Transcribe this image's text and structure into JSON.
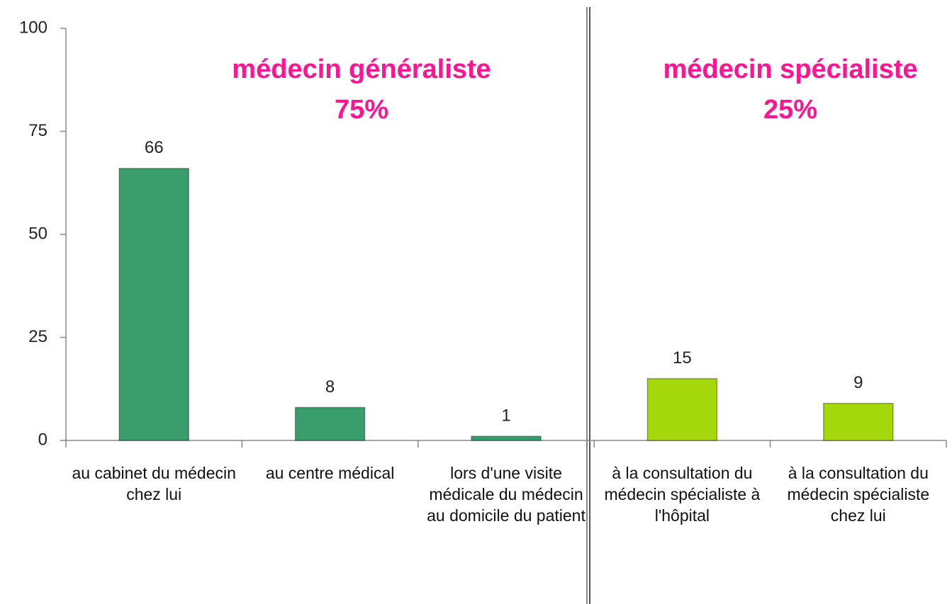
{
  "chart_data": {
    "type": "bar",
    "categories": [
      "au cabinet du médecin chez lui",
      "au centre médical",
      "lors d'une visite médicale du médecin au domicile du patient",
      "à la consultation du médecin spécialiste à l'hôpital",
      "à la consultation du médecin spécialiste chez lui"
    ],
    "values": [
      66,
      8,
      1,
      15,
      9
    ],
    "colors": [
      "#3a9e6c",
      "#3a9e6c",
      "#3a9e6c",
      "#a4d80a",
      "#a4d80a"
    ],
    "ylim": [
      0,
      100
    ],
    "yticks": [
      0,
      25,
      50,
      75,
      100
    ],
    "grid": false,
    "annotations": [
      {
        "title": "médecin généraliste",
        "share": "75%"
      },
      {
        "title": "médecin spécialiste",
        "share": "25%"
      }
    ],
    "annotation_color": "#ff1493"
  }
}
